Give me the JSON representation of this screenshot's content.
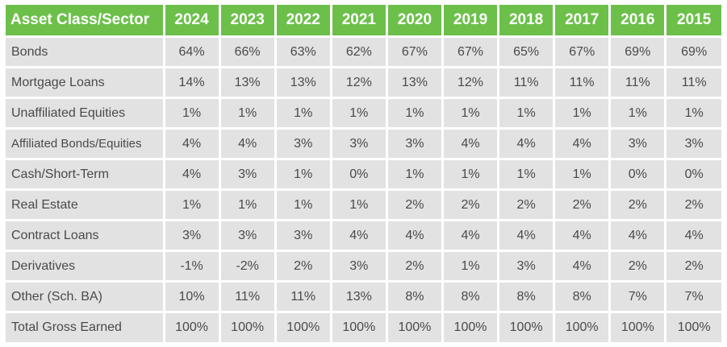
{
  "chart_data": {
    "type": "table",
    "header_label": "Asset Class/Sector",
    "columns": [
      "2024",
      "2023",
      "2022",
      "2021",
      "2020",
      "2019",
      "2018",
      "2017",
      "2016",
      "2015"
    ],
    "rows": [
      {
        "label": "Bonds",
        "values": [
          "64%",
          "66%",
          "63%",
          "62%",
          "67%",
          "67%",
          "65%",
          "67%",
          "69%",
          "69%"
        ]
      },
      {
        "label": "Mortgage Loans",
        "values": [
          "14%",
          "13%",
          "13%",
          "12%",
          "13%",
          "12%",
          "11%",
          "11%",
          "11%",
          "11%"
        ]
      },
      {
        "label": "Unaffiliated Equities",
        "values": [
          "1%",
          "1%",
          "1%",
          "1%",
          "1%",
          "1%",
          "1%",
          "1%",
          "1%",
          "1%"
        ]
      },
      {
        "label": "Affiliated Bonds/Equities",
        "values": [
          "4%",
          "4%",
          "3%",
          "3%",
          "3%",
          "4%",
          "4%",
          "4%",
          "3%",
          "3%"
        ]
      },
      {
        "label": "Cash/Short-Term",
        "values": [
          "4%",
          "3%",
          "1%",
          "0%",
          "1%",
          "1%",
          "1%",
          "1%",
          "0%",
          "0%"
        ]
      },
      {
        "label": "Real Estate",
        "values": [
          "1%",
          "1%",
          "1%",
          "1%",
          "2%",
          "2%",
          "2%",
          "2%",
          "2%",
          "2%"
        ]
      },
      {
        "label": "Contract Loans",
        "values": [
          "3%",
          "3%",
          "3%",
          "4%",
          "4%",
          "4%",
          "4%",
          "4%",
          "4%",
          "4%"
        ]
      },
      {
        "label": "Derivatives",
        "values": [
          "-1%",
          "-2%",
          "2%",
          "3%",
          "2%",
          "1%",
          "3%",
          "4%",
          "2%",
          "2%"
        ]
      },
      {
        "label": "Other (Sch. BA)",
        "values": [
          "10%",
          "11%",
          "11%",
          "13%",
          "8%",
          "8%",
          "8%",
          "8%",
          "7%",
          "7%"
        ]
      }
    ],
    "total": {
      "label": "Total Gross Earned",
      "values": [
        "100%",
        "100%",
        "100%",
        "100%",
        "100%",
        "100%",
        "100%",
        "100%",
        "100%",
        "100%"
      ]
    },
    "colors": {
      "header_bg": "#6cc04a",
      "header_text": "#ffffff",
      "cell_bg": "#e2e2e2",
      "cell_text": "#4a4a4a"
    }
  }
}
